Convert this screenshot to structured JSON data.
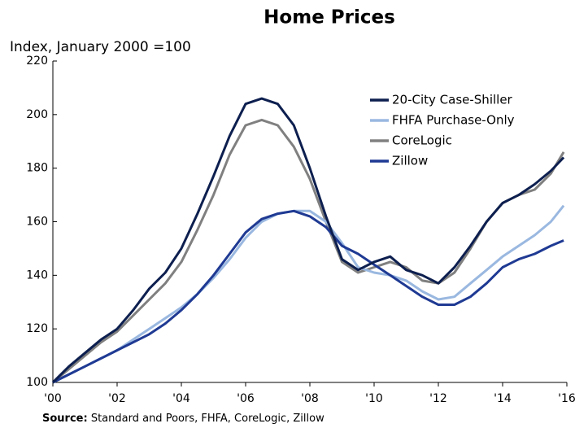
{
  "chart_data": {
    "type": "line",
    "title": "Home Prices",
    "y_label": "Index, January 2000 =100",
    "source_label": "Source:",
    "source_text": "Standard and Poors, FHFA, CoreLogic, Zillow",
    "x": [
      2000,
      2000.5,
      2001,
      2001.5,
      2002,
      2002.5,
      2003,
      2003.5,
      2004,
      2004.5,
      2005,
      2005.5,
      2006,
      2006.5,
      2007,
      2007.5,
      2008,
      2008.5,
      2009,
      2009.5,
      2010,
      2010.5,
      2011,
      2011.5,
      2012,
      2012.5,
      2013,
      2013.5,
      2014,
      2014.5,
      2015,
      2015.5,
      2015.9
    ],
    "series": [
      {
        "name": "20-City Case-Shiller",
        "color": "#0d1f4f",
        "values": [
          100,
          106,
          111,
          116,
          120,
          127,
          135,
          141,
          150,
          163,
          177,
          192,
          204,
          206,
          204,
          196,
          180,
          162,
          146,
          142,
          145,
          147,
          142,
          140,
          137,
          143,
          151,
          160,
          167,
          170,
          174,
          179,
          184
        ]
      },
      {
        "name": "FHFA Purchase-Only",
        "color": "#9ab8e0",
        "values": [
          100,
          103,
          106,
          109,
          112,
          116,
          120,
          124,
          128,
          133,
          139,
          146,
          154,
          160,
          163,
          164,
          164,
          160,
          152,
          143,
          141,
          140,
          138,
          134,
          131,
          132,
          137,
          142,
          147,
          151,
          155,
          160,
          166
        ]
      },
      {
        "name": "CoreLogic",
        "color": "#808080",
        "values": [
          100,
          105,
          110,
          115,
          119,
          125,
          131,
          137,
          145,
          157,
          170,
          185,
          196,
          198,
          196,
          188,
          176,
          160,
          145,
          141,
          143,
          145,
          143,
          138,
          137,
          141,
          150,
          160,
          167,
          170,
          172,
          178,
          186
        ]
      },
      {
        "name": "Zillow",
        "color": "#1f3a93",
        "values": [
          100,
          103,
          106,
          109,
          112,
          115,
          118,
          122,
          127,
          133,
          140,
          148,
          156,
          161,
          163,
          164,
          162,
          158,
          151,
          148,
          144,
          140,
          136,
          132,
          129,
          129,
          132,
          137,
          143,
          146,
          148,
          151,
          153
        ]
      }
    ],
    "xlim": [
      2000,
      2016
    ],
    "ylim": [
      100,
      220
    ],
    "xticks": [
      {
        "value": 2000,
        "label": "'00"
      },
      {
        "value": 2002,
        "label": "'02"
      },
      {
        "value": 2004,
        "label": "'04"
      },
      {
        "value": 2006,
        "label": "'06"
      },
      {
        "value": 2008,
        "label": "'08"
      },
      {
        "value": 2010,
        "label": "'10"
      },
      {
        "value": 2012,
        "label": "'12"
      },
      {
        "value": 2014,
        "label": "'14"
      },
      {
        "value": 2016,
        "label": "'16"
      }
    ],
    "yticks": [
      100,
      120,
      140,
      160,
      180,
      200,
      220
    ],
    "legend": "upper right",
    "grid": false
  }
}
